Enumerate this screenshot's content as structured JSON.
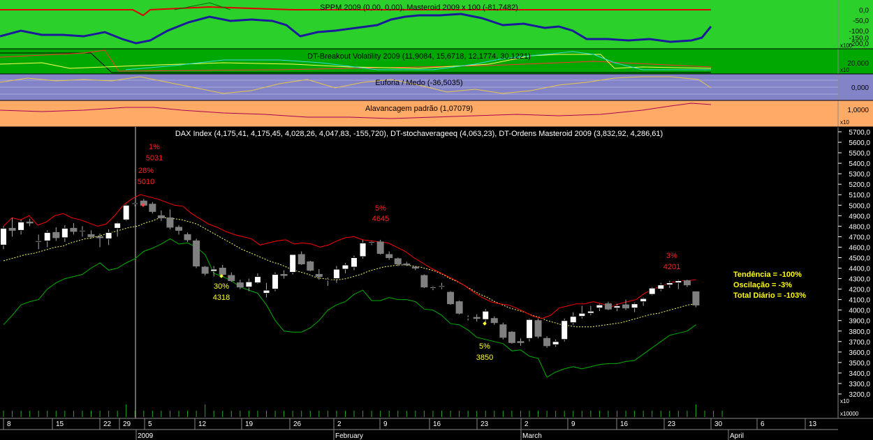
{
  "panels": {
    "sppm": {
      "title": "SPPM 2009 (0,00, 0,00), Masteroid 2009 x 100 (-81,7482)",
      "axis_labels": [
        "0,0",
        "-50,0",
        "-100,0",
        "-150,0",
        "-200,0"
      ],
      "multiplier": "x100",
      "bg_color": "#2bd02b"
    },
    "breakout": {
      "title": "DT-Breakout Volatility 2009 (11,9084, 15,6718, 12,1774, 30,1221)",
      "axis_labels": [
        "20,000"
      ],
      "multiplier": "x10",
      "bg_color": "#02a802"
    },
    "euforia": {
      "title": "Euforia / Medo (-36,5035)",
      "axis_labels": [
        "0,000"
      ],
      "bg_color": "#8383c8"
    },
    "alavancagem": {
      "title": "Alavancagem padrão (1,07079)",
      "axis_labels": [
        "1,0000"
      ],
      "multiplier": "x10",
      "bg_color": "#ffaa66"
    },
    "main": {
      "title": "DAX Index (4,175,41, 4,175,45, 4,028,26, 4,047,83, -155,720), DT-stochaverageeq (4,063,23), DT-Ordens Masteroid 2009 (3,832,92, 4,286,61)",
      "stats": [
        "Tendência = -100%",
        "Oscilação = -3%",
        "Total Diário = -103%"
      ],
      "volume_multiplier": "x10",
      "volume_axis_label": "x10000"
    }
  },
  "annotations": [
    {
      "pct": "1%",
      "value": "5031",
      "color": "#ff2020"
    },
    {
      "pct": "28%",
      "value": "5010",
      "color": "#ff2020"
    },
    {
      "pct": "5%",
      "value": "4645",
      "color": "#ff2020"
    },
    {
      "pct": "30%",
      "value": "4318",
      "color": "#ffff33"
    },
    {
      "pct": "5%",
      "value": "3850",
      "color": "#ffff33"
    },
    {
      "pct": "3%",
      "value": "4201",
      "color": "#ff2020"
    }
  ],
  "x_axis": {
    "day_labels": [
      "8",
      "15",
      "22",
      "29",
      "5",
      "12",
      "19",
      "26",
      "2",
      "9",
      "16",
      "23",
      "2",
      "9",
      "16",
      "23",
      "30",
      "6",
      "13"
    ],
    "month_labels": [
      "2009",
      "February",
      "March",
      "April"
    ]
  },
  "chart_data": {
    "type": "candlestick",
    "title": "DAX Index (4,175,41, 4,175,45, 4,028,26, 4,047,83, -155,720), DT-stochaverageeq (4,063,23), DT-Ordens Masteroid 2009 (3,832,92, 4,286,61)",
    "y_range": [
      3100,
      5700
    ],
    "y_ticks": [
      3200,
      3300,
      3400,
      3500,
      3600,
      3700,
      3800,
      3900,
      4000,
      4100,
      4200,
      4300,
      4400,
      4500,
      4600,
      4700,
      4800,
      4900,
      5000,
      5100,
      5200,
      5300,
      5400,
      5500,
      5600,
      5700
    ],
    "candles": [
      {
        "o": 4620,
        "h": 4800,
        "l": 4580,
        "c": 4780
      },
      {
        "o": 4780,
        "h": 4880,
        "l": 4700,
        "c": 4760
      },
      {
        "o": 4760,
        "h": 4860,
        "l": 4720,
        "c": 4840
      },
      {
        "o": 4840,
        "h": 4870,
        "l": 4800,
        "c": 4830
      },
      {
        "o": 4650,
        "h": 4720,
        "l": 4580,
        "c": 4660
      },
      {
        "o": 4660,
        "h": 4760,
        "l": 4600,
        "c": 4740
      },
      {
        "o": 4740,
        "h": 4790,
        "l": 4660,
        "c": 4690
      },
      {
        "o": 4690,
        "h": 4810,
        "l": 4650,
        "c": 4780
      },
      {
        "o": 4780,
        "h": 4830,
        "l": 4720,
        "c": 4750
      },
      {
        "o": 4750,
        "h": 4800,
        "l": 4700,
        "c": 4760
      },
      {
        "o": 4720,
        "h": 4760,
        "l": 4680,
        "c": 4700
      },
      {
        "o": 4700,
        "h": 4730,
        "l": 4600,
        "c": 4690
      },
      {
        "o": 4680,
        "h": 4770,
        "l": 4620,
        "c": 4740
      },
      {
        "o": 4780,
        "h": 4840,
        "l": 4700,
        "c": 4830
      },
      {
        "o": 4860,
        "h": 5010,
        "l": 4850,
        "c": 5000
      },
      {
        "o": 5010,
        "h": 5030,
        "l": 4990,
        "c": 5020
      },
      {
        "o": 5040,
        "h": 5060,
        "l": 4990,
        "c": 5000
      },
      {
        "o": 5010,
        "h": 5030,
        "l": 4920,
        "c": 4940
      },
      {
        "o": 4900,
        "h": 4950,
        "l": 4850,
        "c": 4880
      },
      {
        "o": 4880,
        "h": 4960,
        "l": 4770,
        "c": 4790
      },
      {
        "o": 4790,
        "h": 4810,
        "l": 4720,
        "c": 4760
      },
      {
        "o": 4720,
        "h": 4740,
        "l": 4650,
        "c": 4670
      },
      {
        "o": 4660,
        "h": 4680,
        "l": 4400,
        "c": 4420
      },
      {
        "o": 4410,
        "h": 4420,
        "l": 4330,
        "c": 4350
      },
      {
        "o": 4370,
        "h": 4420,
        "l": 4320,
        "c": 4390
      },
      {
        "o": 4400,
        "h": 4430,
        "l": 4330,
        "c": 4340
      },
      {
        "o": 4330,
        "h": 4360,
        "l": 4270,
        "c": 4280
      },
      {
        "o": 4260,
        "h": 4290,
        "l": 4200,
        "c": 4220
      },
      {
        "o": 4220,
        "h": 4300,
        "l": 4180,
        "c": 4270
      },
      {
        "o": 4260,
        "h": 4350,
        "l": 4250,
        "c": 4320
      },
      {
        "o": 4160,
        "h": 4260,
        "l": 4120,
        "c": 4190
      },
      {
        "o": 4200,
        "h": 4360,
        "l": 4180,
        "c": 4340
      },
      {
        "o": 4340,
        "h": 4380,
        "l": 4300,
        "c": 4330
      },
      {
        "o": 4360,
        "h": 4530,
        "l": 4340,
        "c": 4530
      },
      {
        "o": 4530,
        "h": 4560,
        "l": 4430,
        "c": 4440
      },
      {
        "o": 4460,
        "h": 4470,
        "l": 4370,
        "c": 4380
      },
      {
        "o": 4340,
        "h": 4390,
        "l": 4290,
        "c": 4320
      },
      {
        "o": 4290,
        "h": 4310,
        "l": 4230,
        "c": 4290
      },
      {
        "o": 4300,
        "h": 4420,
        "l": 4260,
        "c": 4390
      },
      {
        "o": 4390,
        "h": 4450,
        "l": 4350,
        "c": 4430
      },
      {
        "o": 4410,
        "h": 4520,
        "l": 4380,
        "c": 4500
      },
      {
        "o": 4510,
        "h": 4670,
        "l": 4490,
        "c": 4640
      },
      {
        "o": 4640,
        "h": 4660,
        "l": 4620,
        "c": 4650
      },
      {
        "o": 4650,
        "h": 4670,
        "l": 4530,
        "c": 4540
      },
      {
        "o": 4530,
        "h": 4560,
        "l": 4480,
        "c": 4500
      },
      {
        "o": 4490,
        "h": 4500,
        "l": 4420,
        "c": 4440
      },
      {
        "o": 4440,
        "h": 4460,
        "l": 4420,
        "c": 4430
      },
      {
        "o": 4410,
        "h": 4420,
        "l": 4380,
        "c": 4400
      },
      {
        "o": 4330,
        "h": 4340,
        "l": 4210,
        "c": 4220
      },
      {
        "o": 4210,
        "h": 4230,
        "l": 4190,
        "c": 4220
      },
      {
        "o": 4220,
        "h": 4260,
        "l": 4200,
        "c": 4230
      },
      {
        "o": 4170,
        "h": 4180,
        "l": 4050,
        "c": 4060
      },
      {
        "o": 4080,
        "h": 4090,
        "l": 3960,
        "c": 3970
      },
      {
        "o": 3930,
        "h": 3950,
        "l": 3900,
        "c": 3930
      },
      {
        "o": 3930,
        "h": 3960,
        "l": 3890,
        "c": 3920
      },
      {
        "o": 3910,
        "h": 4010,
        "l": 3880,
        "c": 3990
      },
      {
        "o": 3920,
        "h": 3940,
        "l": 3860,
        "c": 3880
      },
      {
        "o": 3860,
        "h": 3880,
        "l": 3720,
        "c": 3740
      },
      {
        "o": 3790,
        "h": 3800,
        "l": 3680,
        "c": 3690
      },
      {
        "o": 3700,
        "h": 3730,
        "l": 3660,
        "c": 3690
      },
      {
        "o": 3730,
        "h": 3920,
        "l": 3700,
        "c": 3910
      },
      {
        "o": 3900,
        "h": 3920,
        "l": 3730,
        "c": 3750
      },
      {
        "o": 3730,
        "h": 3750,
        "l": 3640,
        "c": 3660
      },
      {
        "o": 3670,
        "h": 3720,
        "l": 3650,
        "c": 3700
      },
      {
        "o": 3720,
        "h": 3920,
        "l": 3700,
        "c": 3900
      },
      {
        "o": 3880,
        "h": 3980,
        "l": 3860,
        "c": 3940
      },
      {
        "o": 3940,
        "h": 4040,
        "l": 3920,
        "c": 3970
      },
      {
        "o": 3970,
        "h": 4040,
        "l": 3950,
        "c": 3990
      },
      {
        "o": 4020,
        "h": 4060,
        "l": 3990,
        "c": 4050
      },
      {
        "o": 4060,
        "h": 4080,
        "l": 4000,
        "c": 4010
      },
      {
        "o": 4020,
        "h": 4060,
        "l": 3990,
        "c": 4040
      },
      {
        "o": 4050,
        "h": 4100,
        "l": 4000,
        "c": 4020
      },
      {
        "o": 4020,
        "h": 4070,
        "l": 3980,
        "c": 4060
      },
      {
        "o": 4080,
        "h": 4120,
        "l": 4040,
        "c": 4110
      },
      {
        "o": 4150,
        "h": 4220,
        "l": 4140,
        "c": 4210
      },
      {
        "o": 4200,
        "h": 4260,
        "l": 4180,
        "c": 4240
      },
      {
        "o": 4240,
        "h": 4280,
        "l": 4210,
        "c": 4260
      },
      {
        "o": 4260,
        "h": 4290,
        "l": 4200,
        "c": 4280
      },
      {
        "o": 4280,
        "h": 4290,
        "l": 4220,
        "c": 4240
      },
      {
        "o": 4175,
        "h": 4175,
        "l": 4028,
        "c": 4048
      }
    ],
    "series": [
      {
        "name": "DT-stochaverageeq",
        "color": "#ffff66",
        "values": [
          4470,
          4490,
          4510,
          4530,
          4540,
          4560,
          4580,
          4600,
          4610,
          4640,
          4660,
          4680,
          4690,
          4710,
          4730,
          4750,
          4770,
          4790,
          4800,
          4830,
          4850,
          4880,
          4880,
          4870,
          4860,
          4840,
          4820,
          4780,
          4740,
          4700,
          4660,
          4620,
          4580,
          4550,
          4520,
          4490,
          4460,
          4440,
          4410,
          4380,
          4360,
          4340,
          4310,
          4300,
          4290,
          4290,
          4300,
          4320,
          4340,
          4370,
          4390,
          4410,
          4420,
          4430,
          4430,
          4420,
          4410,
          4390,
          4370,
          4340,
          4300,
          4270,
          4230,
          4190,
          4150,
          4120,
          4080,
          4050,
          4020,
          4000,
          3980,
          3950,
          3930,
          3900,
          3880,
          3860,
          3850,
          3840,
          3840,
          3840,
          3850,
          3860,
          3870,
          3880,
          3900,
          3920,
          3940,
          3960,
          3970,
          3990,
          4010,
          4030,
          4050,
          4060
        ]
      },
      {
        "name": "DT-Ordens Masteroid 2009 upper",
        "color": "#ff0000",
        "values": [
          4800,
          4880,
          4860,
          4900,
          4810,
          4840,
          4900,
          4920,
          4880,
          4860,
          4830,
          4800,
          4820,
          4900,
          5000,
          5060,
          5100,
          5080,
          5060,
          5030,
          5000,
          4990,
          4920,
          4870,
          4820,
          4790,
          4750,
          4720,
          4700,
          4680,
          4620,
          4640,
          4660,
          4670,
          4630,
          4640,
          4630,
          4600,
          4620,
          4660,
          4690,
          4700,
          4670,
          4660,
          4650,
          4640,
          4600,
          4560,
          4500,
          4450,
          4400,
          4360,
          4320,
          4280,
          4230,
          4170,
          4120,
          4080,
          4060,
          4050,
          4020,
          3980,
          3940,
          3920,
          3950,
          4020,
          4040,
          4060,
          4060,
          4080,
          4060,
          4030,
          4060,
          4080,
          4100,
          4160,
          4200,
          4230,
          4260,
          4280,
          4280,
          4290
        ]
      },
      {
        "name": "DT-Ordens Masteroid 2009 lower",
        "color": "#00b000",
        "values": [
          3860,
          3950,
          4050,
          4080,
          4100,
          4200,
          4260,
          4300,
          4320,
          4340,
          4400,
          4450,
          4380,
          4400,
          4450,
          4490,
          4560,
          4590,
          4630,
          4680,
          4630,
          4640,
          4600,
          4530,
          4350,
          4320,
          4280,
          4220,
          4190,
          4160,
          4050,
          3900,
          3800,
          3790,
          3790,
          3830,
          3900,
          4000,
          4050,
          4080,
          4150,
          4190,
          4090,
          4090,
          4120,
          4100,
          4100,
          4080,
          4010,
          4000,
          3950,
          3870,
          3860,
          3810,
          3740,
          3720,
          3700,
          3680,
          3610,
          3620,
          3560,
          3540,
          3360,
          3410,
          3440,
          3460,
          3440,
          3460,
          3480,
          3490,
          3490,
          3510,
          3520,
          3580,
          3640,
          3700,
          3760,
          3780,
          3800,
          3860
        ]
      }
    ],
    "volume": [
      1,
      1,
      1,
      1,
      1,
      1,
      1,
      1,
      1,
      1,
      1,
      1,
      1,
      1,
      2,
      1,
      1,
      1,
      1,
      1,
      1,
      1,
      1,
      2,
      1,
      1,
      1,
      1,
      1,
      1,
      1,
      1,
      1,
      1,
      1,
      1,
      1,
      1,
      1,
      1,
      1,
      1,
      1,
      1,
      1,
      1,
      1,
      1,
      1,
      1,
      1,
      1,
      1,
      1,
      1,
      1,
      1,
      1,
      1,
      1,
      1,
      1,
      1,
      1,
      1,
      1,
      1,
      1,
      1,
      1,
      1,
      1,
      1,
      1,
      1,
      1,
      1,
      1,
      1,
      2,
      1,
      1,
      1
    ]
  }
}
